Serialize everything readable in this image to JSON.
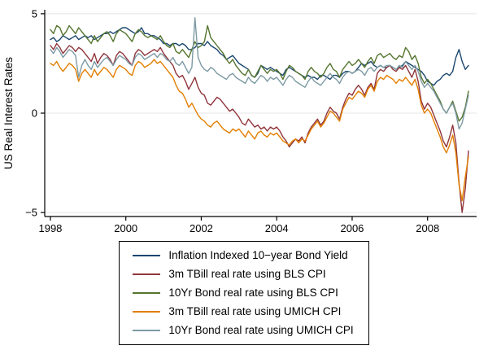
{
  "figure": {
    "title": "",
    "ylabel": "US Real Interest Rates"
  },
  "chart_data": {
    "type": "line",
    "title": "",
    "xlabel": "",
    "ylabel": "US Real Interest Rates",
    "xlim": [
      1997.85,
      2009.3
    ],
    "ylim": [
      -5.2,
      5.2
    ],
    "xticks": [
      1998,
      2000,
      2002,
      2004,
      2006,
      2008
    ],
    "xtick_labels": [
      "1998",
      "2000",
      "2002",
      "2004",
      "2006",
      "2008"
    ],
    "yticks": [
      -5,
      0,
      5
    ],
    "ytick_labels": [
      "−5",
      "0",
      "5"
    ],
    "grid": "horizontal-light",
    "gridline_color": "#e4e4e4",
    "axis_color": "#000000",
    "legend_position": "bottom-box",
    "x_start": 1998,
    "x_step": 0.0833333,
    "series": [
      {
        "name": "Inflation Indexed 10−year Bond Yield",
        "color": "#1a476f",
        "values": [
          3.7,
          3.8,
          3.6,
          3.7,
          3.9,
          3.8,
          3.7,
          3.8,
          3.9,
          3.7,
          3.8,
          3.9,
          3.8,
          3.9,
          3.7,
          3.8,
          3.9,
          4.0,
          4.0,
          4.1,
          4.0,
          4.1,
          4.2,
          4.3,
          4.3,
          4.2,
          4.1,
          4.0,
          4.1,
          4.3,
          4.0,
          4.0,
          3.9,
          3.9,
          3.8,
          3.7,
          3.5,
          3.5,
          3.4,
          3.5,
          3.5,
          3.4,
          3.5,
          3.4,
          3.2,
          3.2,
          3.3,
          3.5,
          3.5,
          3.4,
          3.6,
          3.4,
          3.3,
          3.2,
          3.0,
          2.9,
          2.7,
          2.8,
          2.9,
          2.7,
          2.5,
          2.4,
          2.3,
          2.2,
          1.9,
          1.8,
          2.0,
          2.4,
          2.3,
          2.2,
          2.3,
          2.2,
          2.1,
          2.0,
          1.9,
          2.2,
          2.3,
          2.2,
          2.1,
          2.0,
          1.9,
          1.8,
          1.9,
          1.8,
          1.8,
          1.7,
          1.9,
          1.9,
          1.8,
          1.7,
          1.9,
          1.9,
          1.8,
          2.0,
          2.1,
          2.1,
          2.0,
          2.1,
          2.3,
          2.5,
          2.4,
          2.5,
          2.6,
          2.4,
          2.3,
          2.4,
          2.3,
          2.3,
          2.4,
          2.3,
          2.2,
          2.3,
          2.4,
          2.6,
          2.5,
          2.4,
          2.3,
          2.2,
          2.1,
          1.9,
          1.6,
          1.5,
          1.4,
          1.6,
          1.7,
          1.9,
          2.0,
          1.9,
          2.1,
          2.8,
          3.2,
          2.6,
          2.2,
          2.4
        ]
      },
      {
        "name": "3m TBill real rate using BLS CPI",
        "color": "#90353b",
        "values": [
          3.4,
          3.2,
          3.5,
          3.3,
          3.0,
          3.2,
          3.4,
          3.3,
          3.1,
          3.3,
          3.2,
          3.0,
          2.8,
          2.6,
          3.0,
          2.5,
          2.8,
          3.0,
          2.9,
          2.7,
          2.4,
          2.9,
          3.1,
          3.0,
          2.8,
          2.6,
          2.4,
          3.0,
          3.2,
          3.1,
          2.9,
          3.0,
          3.1,
          3.2,
          3.1,
          3.3,
          3.0,
          2.8,
          2.6,
          2.4,
          2.0,
          1.8,
          1.9,
          1.6,
          1.2,
          1.5,
          1.8,
          1.3,
          1.0,
          0.9,
          0.5,
          0.4,
          0.6,
          0.8,
          0.7,
          0.5,
          0.3,
          0.1,
          0.2,
          0.0,
          -0.2,
          -0.5,
          -0.6,
          -0.3,
          -0.5,
          -0.7,
          -0.6,
          -0.8,
          -0.7,
          -0.9,
          -0.7,
          -0.8,
          -0.7,
          -0.9,
          -1.2,
          -1.4,
          -1.7,
          -1.5,
          -1.3,
          -1.4,
          -1.2,
          -1.5,
          -1.0,
          -0.7,
          -0.5,
          -0.3,
          -0.6,
          -0.4,
          0.0,
          0.3,
          0.1,
          0.0,
          -0.3,
          0.3,
          0.7,
          1.0,
          0.9,
          1.2,
          1.4,
          1.2,
          0.9,
          1.3,
          1.5,
          1.2,
          2.0,
          2.2,
          2.1,
          2.3,
          2.4,
          2.2,
          2.1,
          2.3,
          2.2,
          2.4,
          2.1,
          1.8,
          2.2,
          1.6,
          0.6,
          0.2,
          0.5,
          0.3,
          -0.1,
          -0.5,
          -0.9,
          -1.4,
          -1.7,
          -1.2,
          -0.6,
          -1.5,
          -3.5,
          -5.0,
          -3.8,
          -1.9
        ]
      },
      {
        "name": "10Yr Bond real rate using BLS CPI",
        "color": "#55752f",
        "values": [
          4.2,
          4.0,
          4.4,
          4.3,
          3.9,
          4.1,
          4.4,
          4.2,
          4.0,
          4.3,
          4.1,
          3.9,
          3.7,
          3.5,
          3.9,
          3.6,
          3.8,
          4.0,
          4.1,
          3.9,
          3.6,
          4.0,
          4.2,
          4.1,
          4.0,
          3.8,
          3.6,
          4.0,
          4.2,
          4.1,
          3.9,
          3.8,
          3.9,
          3.8,
          3.7,
          3.9,
          3.6,
          3.4,
          3.3,
          3.5,
          3.1,
          3.0,
          3.2,
          3.0,
          2.8,
          3.2,
          3.6,
          3.3,
          3.4,
          3.6,
          4.4,
          3.8,
          3.6,
          3.4,
          3.2,
          3.0,
          2.7,
          2.5,
          2.7,
          2.4,
          2.2,
          2.0,
          1.9,
          2.2,
          1.9,
          1.8,
          2.1,
          2.4,
          2.2,
          2.0,
          2.2,
          2.1,
          2.2,
          2.0,
          1.7,
          2.1,
          2.4,
          2.3,
          2.1,
          2.0,
          1.9,
          1.7,
          2.1,
          2.3,
          2.1,
          2.0,
          1.8,
          2.0,
          2.3,
          2.5,
          2.2,
          2.1,
          1.8,
          2.2,
          2.4,
          2.6,
          2.4,
          2.5,
          2.7,
          2.5,
          2.3,
          2.6,
          2.8,
          2.5,
          2.9,
          3.0,
          2.8,
          2.9,
          3.0,
          2.8,
          2.7,
          2.9,
          2.8,
          3.3,
          3.1,
          2.7,
          2.9,
          2.5,
          1.8,
          1.5,
          1.7,
          1.5,
          1.2,
          0.9,
          0.6,
          0.2,
          0.0,
          0.3,
          0.6,
          0.1,
          -0.4,
          -0.2,
          0.3,
          1.1
        ]
      },
      {
        "name": "3m TBill real rate using UMICH CPI",
        "color": "#e37e00",
        "values": [
          2.5,
          2.4,
          2.6,
          2.3,
          2.1,
          2.3,
          2.5,
          2.4,
          2.2,
          1.6,
          2.0,
          2.2,
          2.0,
          1.8,
          2.2,
          1.9,
          2.1,
          2.3,
          2.2,
          2.0,
          1.8,
          2.2,
          2.4,
          2.3,
          2.2,
          2.0,
          1.9,
          2.4,
          2.6,
          2.5,
          2.3,
          2.4,
          2.5,
          2.7,
          2.5,
          2.6,
          2.4,
          2.2,
          2.0,
          1.8,
          1.4,
          1.1,
          1.0,
          0.7,
          0.3,
          0.5,
          0.2,
          -0.1,
          -0.3,
          -0.4,
          -0.6,
          -0.7,
          -0.5,
          -0.4,
          -0.6,
          -0.8,
          -0.9,
          -1.0,
          -0.8,
          -0.9,
          -0.8,
          -1.0,
          -1.2,
          -0.9,
          -1.1,
          -1.3,
          -1.0,
          -0.9,
          -1.1,
          -1.2,
          -1.0,
          -1.1,
          -1.0,
          -1.2,
          -1.4,
          -1.5,
          -1.6,
          -1.4,
          -1.3,
          -1.5,
          -1.3,
          -1.4,
          -1.1,
          -0.8,
          -0.6,
          -0.4,
          -0.7,
          -0.5,
          -0.2,
          0.1,
          0.0,
          -0.2,
          -0.4,
          0.2,
          0.5,
          0.8,
          0.7,
          0.9,
          1.1,
          1.0,
          0.8,
          1.2,
          1.4,
          1.1,
          1.6,
          1.8,
          1.7,
          1.9,
          1.8,
          1.7,
          1.5,
          1.7,
          1.6,
          1.8,
          1.6,
          1.4,
          1.7,
          1.2,
          0.4,
          0.0,
          0.2,
          0.0,
          -0.4,
          -0.8,
          -1.2,
          -1.7,
          -2.0,
          -1.6,
          -1.1,
          -2.0,
          -3.6,
          -4.4,
          -3.2,
          -2.2
        ]
      },
      {
        "name": "10Yr Bond real rate using UMICH CPI",
        "color": "#7d9aa4",
        "values": [
          3.2,
          3.0,
          3.3,
          3.1,
          2.8,
          3.0,
          3.2,
          3.1,
          2.9,
          1.8,
          2.4,
          2.7,
          2.4,
          2.2,
          2.6,
          2.3,
          2.5,
          2.7,
          2.8,
          2.6,
          2.4,
          2.7,
          2.9,
          2.8,
          2.7,
          2.5,
          2.4,
          2.8,
          3.0,
          2.9,
          2.7,
          2.8,
          2.9,
          3.0,
          2.8,
          3.0,
          2.9,
          2.7,
          2.6,
          2.8,
          2.5,
          2.4,
          2.6,
          2.3,
          2.0,
          2.3,
          4.8,
          2.8,
          2.4,
          2.2,
          2.1,
          2.3,
          2.2,
          2.0,
          1.9,
          1.8,
          1.7,
          1.9,
          2.0,
          1.8,
          1.7,
          1.6,
          1.5,
          1.8,
          1.6,
          1.5,
          1.7,
          1.9,
          1.8,
          1.6,
          1.8,
          1.7,
          1.8,
          1.6,
          1.4,
          1.7,
          1.9,
          1.8,
          1.6,
          1.5,
          1.4,
          1.3,
          1.6,
          1.8,
          1.6,
          1.5,
          1.4,
          1.6,
          1.8,
          2.0,
          1.8,
          1.7,
          1.5,
          1.8,
          2.0,
          2.1,
          2.0,
          2.1,
          2.2,
          2.1,
          1.9,
          2.2,
          2.3,
          2.1,
          2.3,
          2.4,
          2.3,
          2.4,
          2.4,
          2.3,
          2.2,
          2.4,
          2.3,
          2.6,
          2.4,
          2.2,
          2.4,
          2.1,
          1.6,
          1.3,
          1.5,
          1.3,
          1.1,
          0.8,
          0.5,
          0.2,
          0.0,
          0.3,
          0.5,
          0.0,
          -0.8,
          -0.5,
          0.2,
          0.9
        ]
      }
    ]
  }
}
